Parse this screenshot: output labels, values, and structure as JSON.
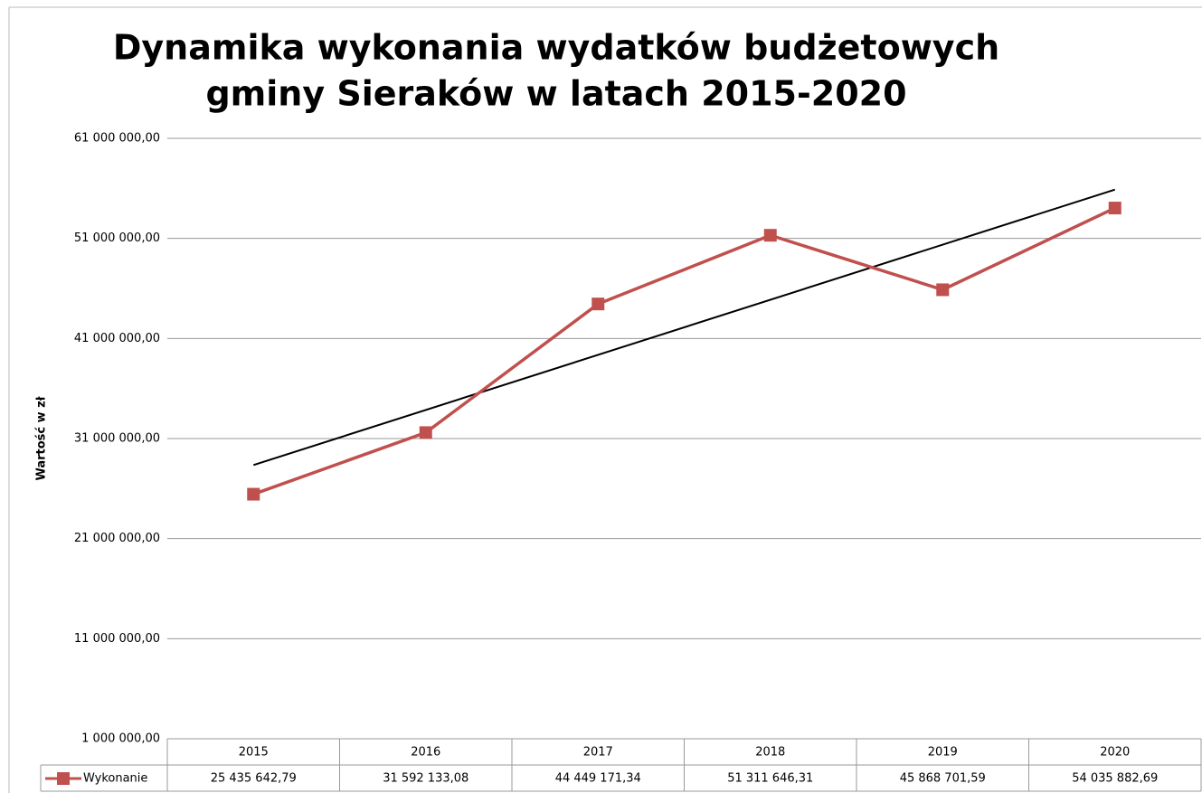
{
  "chart_data": {
    "type": "line",
    "title": "Dynamika wykonania wydatków budżetowych",
    "subtitle": "gminy Sieraków w latach 2015-2020",
    "y_label": "Wartość w zł",
    "categories": [
      "2015",
      "2016",
      "2017",
      "2018",
      "2019",
      "2020"
    ],
    "series": [
      {
        "name": "Wykonanie",
        "color": "#c0504d",
        "values": [
          25435642.79,
          31592133.08,
          44449171.34,
          51311646.31,
          45868701.59,
          54035882.69
        ],
        "value_labels": [
          "25 435 642,79",
          "31 592 133,08",
          "44 449 171,34",
          "51 311 646,31",
          "45 868 701,59",
          "54 035 882,69"
        ]
      }
    ],
    "trendline": "linear",
    "trendline_color": "#000000",
    "ylim": [
      1000000,
      61000000
    ],
    "yticks": [
      {
        "value": 1000000,
        "label": "1 000 000,00"
      },
      {
        "value": 11000000,
        "label": "11 000 000,00"
      },
      {
        "value": 21000000,
        "label": "21 000 000,00"
      },
      {
        "value": 31000000,
        "label": "31 000 000,00"
      },
      {
        "value": 41000000,
        "label": "41 000 000,00"
      },
      {
        "value": 51000000,
        "label": "51 000 000,00"
      },
      {
        "value": 61000000,
        "label": "61 000 000,00"
      }
    ],
    "grid": true
  }
}
